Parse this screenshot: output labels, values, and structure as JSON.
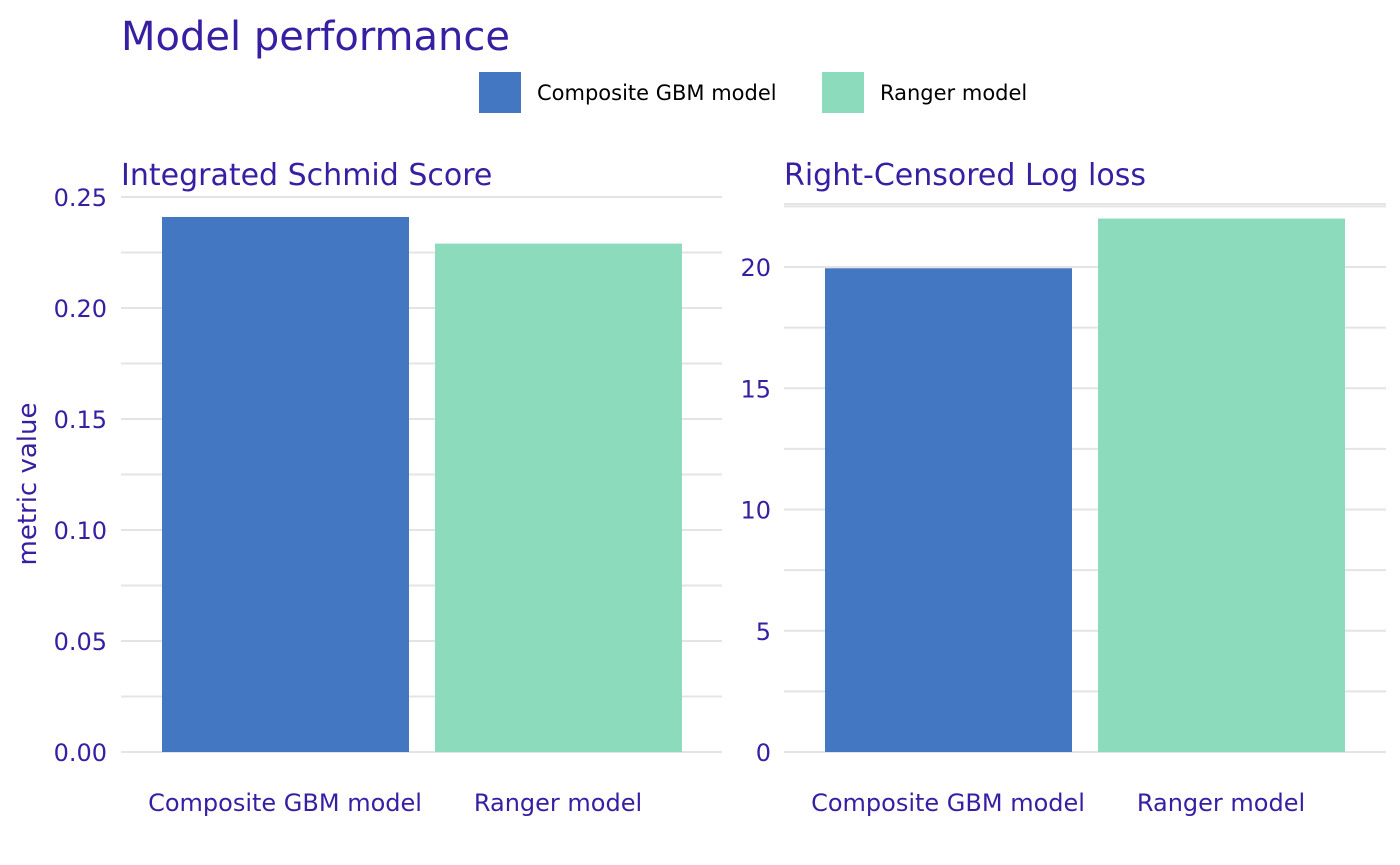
{
  "title": "Model performance",
  "ylabel": "metric value",
  "legend": {
    "position": "top",
    "items": [
      {
        "label": "Composite GBM model",
        "color": "#4477c1"
      },
      {
        "label": "Ranger model",
        "color": "#8bdbbc"
      }
    ]
  },
  "chart_data": [
    {
      "type": "bar",
      "title": "Integrated Schmid Score",
      "categories": [
        "Composite GBM model",
        "Ranger model"
      ],
      "values": [
        0.241,
        0.229
      ],
      "colors": [
        "#4477c1",
        "#8bdbbc"
      ],
      "ylim": [
        0,
        0.25
      ],
      "yticks": [
        0.0,
        0.05,
        0.1,
        0.15,
        0.2,
        0.25
      ],
      "ytick_labels": [
        "0.00",
        "0.05",
        "0.10",
        "0.15",
        "0.20",
        "0.25"
      ],
      "grid": true
    },
    {
      "type": "bar",
      "title": "Right-Censored Log loss",
      "categories": [
        "Composite GBM model",
        "Ranger model"
      ],
      "values": [
        19.95,
        22.0
      ],
      "colors": [
        "#4477c1",
        "#8bdbbc"
      ],
      "ylim": [
        0,
        22.6
      ],
      "yticks": [
        0,
        5,
        10,
        15,
        20
      ],
      "ytick_labels": [
        "0",
        "5",
        "10",
        "15",
        "20"
      ],
      "grid": true
    }
  ]
}
